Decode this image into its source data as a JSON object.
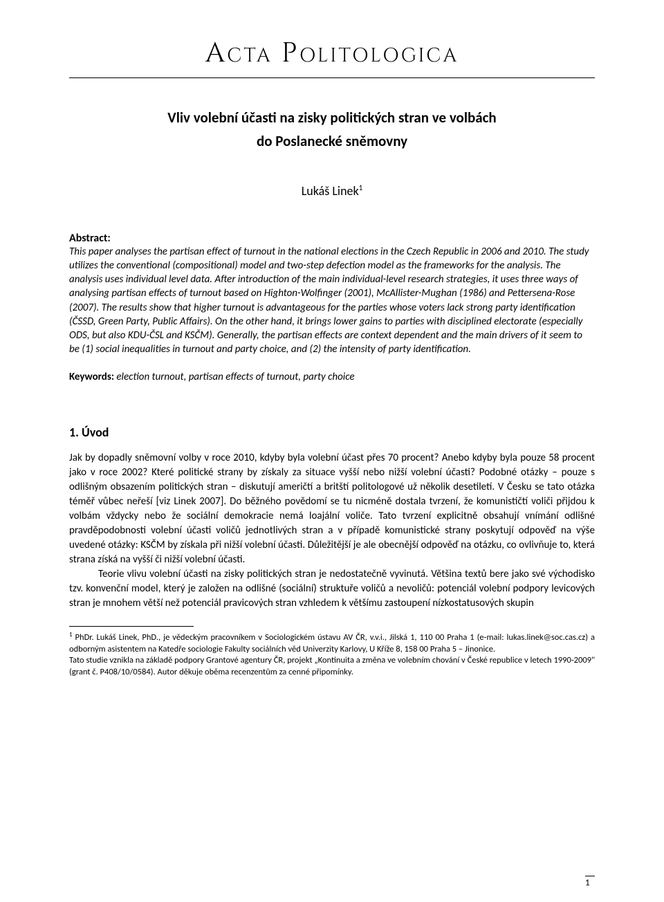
{
  "journal": {
    "title": "Acta Politologica"
  },
  "article": {
    "title_line1": "Vliv volební účasti na zisky politických stran ve volbách",
    "title_line2": "do Poslanecké sněmovny",
    "author": "Lukáš Linek",
    "author_footnote_ref": "1"
  },
  "abstract": {
    "label": "Abstract:",
    "text": "This paper analyses the partisan effect of turnout in the national elections in the Czech Republic in 2006 and 2010. The study utilizes the conventional (compositional) model and two-step defection model as the frameworks for the analysis. The analysis uses individual level data. After introduction of the main individual-level research strategies, it uses three ways of analysing partisan effects of turnout based on Highton-Wolfinger (2001), McAllister-Mughan (1986) and Pettersena-Rose (2007). The results show that higher turnout is advantageous for the parties whose voters lack strong party identification (ČSSD, Green Party, Public Affairs). On the other hand, it brings lower gains to parties with disciplined electorate (especially ODS, but also KDU-ČSL and KSČM). Generally, the partisan effects are context dependent and the main drivers of it seem to be (1) social inequalities in turnout and party choice, and (2) the intensity of party identification."
  },
  "keywords": {
    "label": "Keywords:",
    "text": " election turnout, partisan effects of turnout, party choice"
  },
  "section1": {
    "heading": "1. Úvod",
    "para1": "Jak by dopadly sněmovní volby v roce 2010, kdyby byla volební účast přes 70 procent? Anebo kdyby byla pouze 58 procent jako v roce 2002? Které politické strany by získaly za situace vyšší nebo nižší volební účasti? Podobné otázky – pouze s odlišným obsazením politických stran – diskutují američtí a britští politologové už několik desetiletí. V Česku se tato otázka téměř vůbec neřeší [viz Linek 2007]. Do běžného povědomí se tu nicméně dostala tvrzení, že komunističtí voliči přijdou k volbám vždycky nebo že sociální demokracie nemá loajální voliče. Tato tvrzení explicitně obsahují vnímání odlišné pravděpodobnosti volební účasti voličů jednotlivých stran a v případě komunistické strany poskytují odpověď na výše uvedené otázky: KSČM by získala při nižší volební účasti. Důležitější je ale obecnější odpověď na otázku, co ovlivňuje to, která strana získá na vyšší či nižší volební účasti.",
    "para2_continuation": "Teorie vlivu volební účasti na zisky politických stran je nedostatečně vyvinutá. Většina textů bere jako své východisko tzv. konvenční model, který je založen na odlišné (sociální) struktuře voličů a nevoličů: potenciál volební podpory levicových stran je mnohem větší než potenciál pravicových stran vzhledem k většímu zastoupení nízkostatusových skupin"
  },
  "footnote": {
    "num": "1",
    "text": " PhDr. Lukáš Linek, PhD., je vědeckým pracovníkem v Sociologickém ústavu AV ČR, v.v.i., Jilská 1, 110 00 Praha 1 (e-mail: lukas.linek@soc.cas.cz) a odborným asistentem na Katedře sociologie Fakulty sociálních věd Univerzity Karlovy, U Kříže 8, 158 00 Praha 5 – Jinonice.",
    "text2": "Tato studie vznikla na základě podpory Grantové agentury ČR, projekt „Kontinuita a změna ve volebním chování v České republice v letech 1990-2009\" (grant č. P408/10/0584). Autor děkuje oběma recenzentům za cenné připomínky."
  },
  "page_number": "1"
}
